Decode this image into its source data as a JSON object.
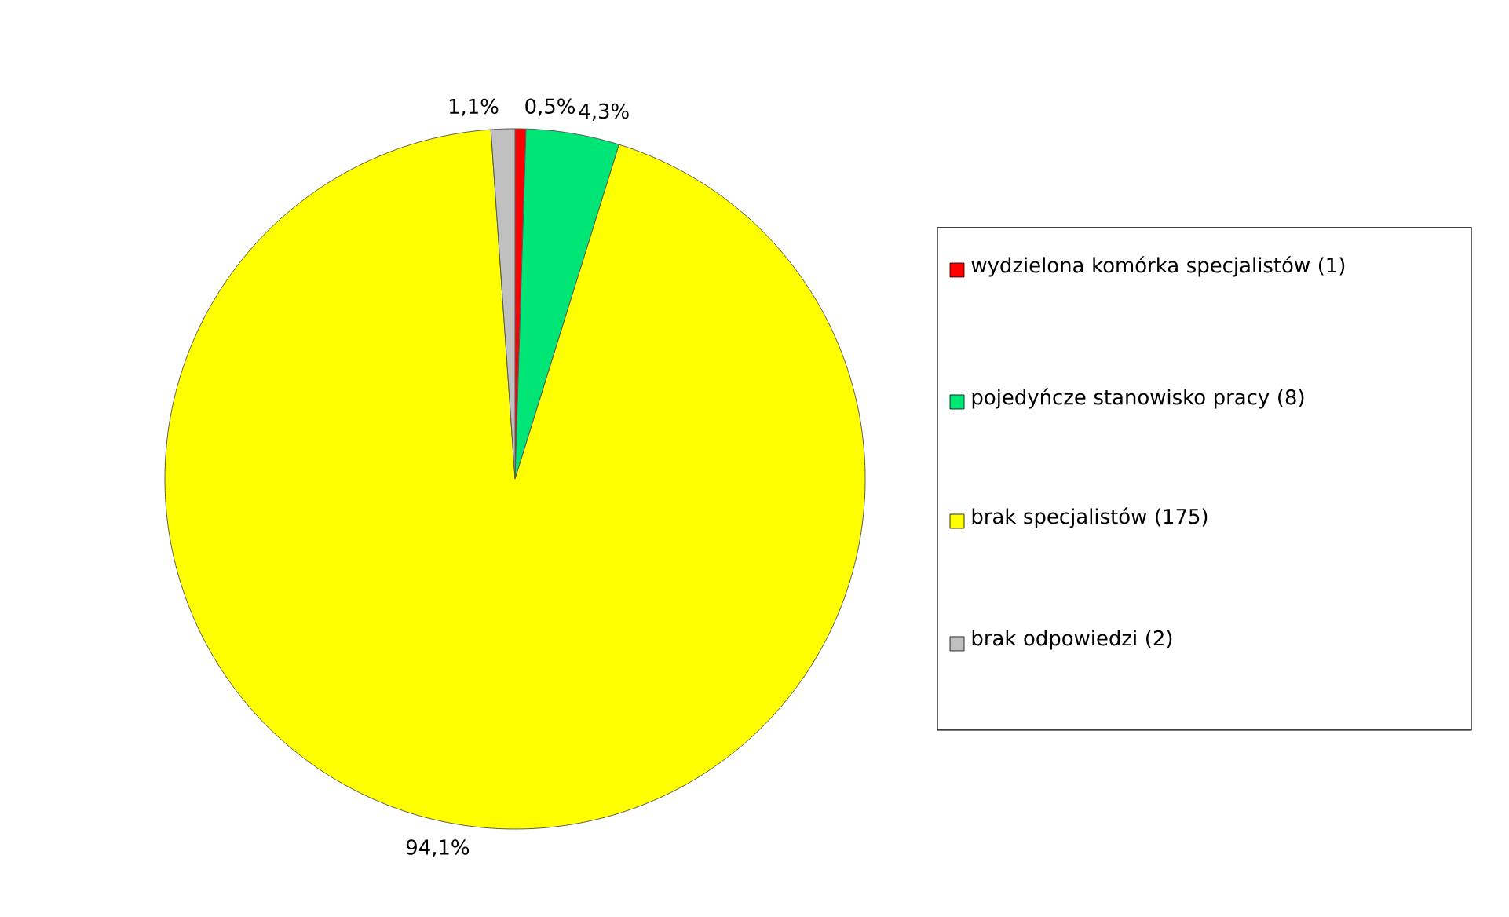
{
  "chart_data": {
    "type": "pie",
    "categories": [
      "wydzielona komórka specjalistów (1)",
      "pojedyńcze stanowisko pracy (8)",
      "brak specjalistów (175)",
      "brak odpowiedzi  (2)"
    ],
    "values": [
      0.5,
      4.3,
      94.1,
      1.1
    ],
    "value_labels": [
      "0,5%",
      "4,3%",
      "94,1%",
      "1,1%"
    ],
    "colors": [
      "#ff0000",
      "#00e676",
      "#ffff00",
      "#c0c0c0"
    ],
    "legend": "right"
  }
}
